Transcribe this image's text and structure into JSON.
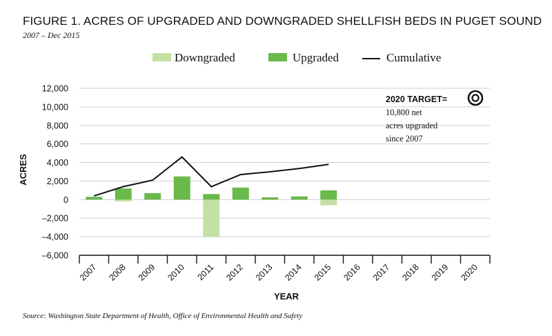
{
  "chart_data": {
    "type": "bar",
    "title": "FIGURE 1. ACRES OF UPGRADED AND DOWNGRADED SHELLFISH BEDS IN PUGET SOUND",
    "subtitle": "2007 – Dec 2015",
    "xlabel": "YEAR",
    "ylabel": "ACRES",
    "ylim": [
      -6000,
      12000
    ],
    "yticks": [
      12000,
      10000,
      8000,
      6000,
      4000,
      2000,
      0,
      -2000,
      -4000,
      -6000
    ],
    "ytick_labels": [
      "12,000",
      "10,000",
      "8,000",
      "6,000",
      "4,000",
      "2,000",
      "0",
      "–2,000",
      "–4,000",
      "–6,000"
    ],
    "categories": [
      "2007",
      "2008",
      "2009",
      "2010",
      "2011",
      "2012",
      "2013",
      "2014",
      "2015",
      "2016",
      "2017",
      "2018",
      "2019",
      "2020"
    ],
    "grid": true,
    "legend_position": "top",
    "series": [
      {
        "name": "Downgraded",
        "type": "bar",
        "color": "#c5e0a5",
        "values": [
          0,
          -200,
          0,
          0,
          -4000,
          0,
          0,
          0,
          -600,
          null,
          null,
          null,
          null,
          null
        ]
      },
      {
        "name": "Upgraded",
        "type": "bar",
        "color": "#6ab94b",
        "values": [
          300,
          1200,
          700,
          2500,
          600,
          1300,
          250,
          350,
          1000,
          null,
          null,
          null,
          null,
          null
        ]
      },
      {
        "name": "Cumulative",
        "type": "line",
        "color": "#111111",
        "values": [
          400,
          1400,
          2100,
          4600,
          1400,
          2700,
          3000,
          3350,
          3800,
          null,
          null,
          null,
          null,
          null
        ]
      }
    ],
    "annotations": {
      "target_heading": "2020 TARGET=",
      "target_icon": "target-circle-icon",
      "target_lines": [
        "10,800 net",
        "acres upgraded",
        "since 2007"
      ]
    },
    "source": "Source: Washington State Department of Health, Office of Environmental Health and Safety"
  }
}
